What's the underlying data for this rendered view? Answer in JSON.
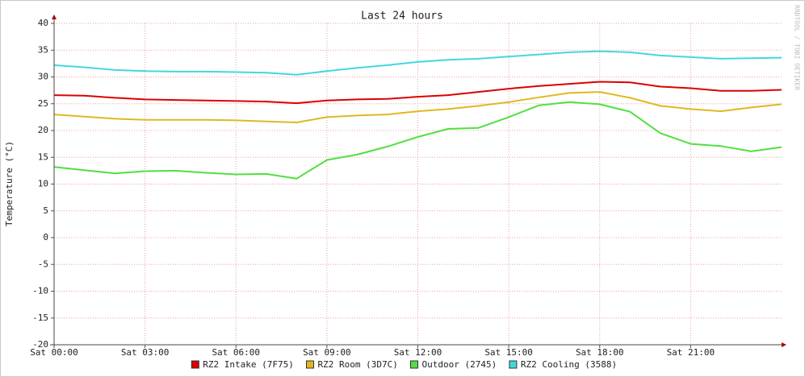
{
  "chart_data": {
    "type": "line",
    "title": "Last 24 hours",
    "y_label": "Temperature (°C)",
    "watermark": "RRDTOOL / TOBI OETIKER",
    "x": [
      0,
      1,
      2,
      3,
      4,
      5,
      6,
      7,
      8,
      9,
      10,
      11,
      12,
      13,
      14,
      15,
      16,
      17,
      18,
      19,
      20,
      21,
      22,
      23,
      24
    ],
    "xlim": [
      0,
      24
    ],
    "xticks": [
      {
        "value": 0,
        "label": "Sat 00:00"
      },
      {
        "value": 3,
        "label": "Sat 03:00"
      },
      {
        "value": 6,
        "label": "Sat 06:00"
      },
      {
        "value": 9,
        "label": "Sat 09:00"
      },
      {
        "value": 12,
        "label": "Sat 12:00"
      },
      {
        "value": 15,
        "label": "Sat 15:00"
      },
      {
        "value": 18,
        "label": "Sat 18:00"
      },
      {
        "value": 21,
        "label": "Sat 21:00"
      }
    ],
    "ylim": [
      -20,
      40
    ],
    "yticks": [
      -20,
      -15,
      -10,
      -5,
      0,
      5,
      10,
      15,
      20,
      25,
      30,
      35,
      40
    ],
    "grid": true,
    "legend": "bottom",
    "series": [
      {
        "name": "RZ2 Intake (7F75)",
        "color": "#dd0000",
        "values": [
          26.6,
          26.5,
          26.1,
          25.8,
          25.7,
          25.6,
          25.5,
          25.4,
          25.1,
          25.6,
          25.8,
          25.9,
          26.3,
          26.6,
          27.2,
          27.8,
          28.3,
          28.7,
          29.1,
          29.0,
          28.2,
          27.9,
          27.4,
          27.4,
          27.6
        ]
      },
      {
        "name": "RZ2 Room (3D7C)",
        "color": "#e0b820",
        "values": [
          23.0,
          22.6,
          22.2,
          22.0,
          22.0,
          22.0,
          21.9,
          21.7,
          21.5,
          22.5,
          22.8,
          23.0,
          23.6,
          24.0,
          24.6,
          25.3,
          26.2,
          27.0,
          27.2,
          26.1,
          24.6,
          24.0,
          23.6,
          24.3,
          24.9
        ]
      },
      {
        "name": "Outdoor (2745)",
        "color": "#50e040",
        "values": [
          13.2,
          12.6,
          12.0,
          12.4,
          12.5,
          12.1,
          11.8,
          11.9,
          11.0,
          14.5,
          15.5,
          17.0,
          18.8,
          20.3,
          20.5,
          22.5,
          24.7,
          25.3,
          24.9,
          23.5,
          19.5,
          17.5,
          17.1,
          16.1,
          16.9
        ]
      },
      {
        "name": "RZ2 Cooling (3588)",
        "color": "#40d8e0",
        "values": [
          32.2,
          31.8,
          31.3,
          31.1,
          31.0,
          31.0,
          30.9,
          30.8,
          30.4,
          31.1,
          31.7,
          32.2,
          32.8,
          33.2,
          33.4,
          33.8,
          34.2,
          34.6,
          34.8,
          34.6,
          34.0,
          33.7,
          33.4,
          33.5,
          33.6
        ]
      }
    ]
  }
}
